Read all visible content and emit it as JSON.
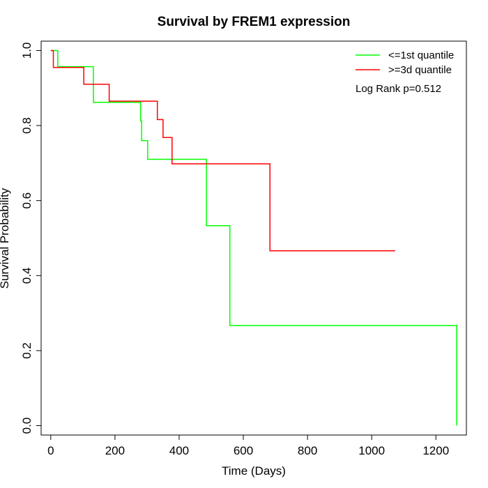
{
  "chart_data": {
    "type": "line",
    "step": true,
    "title": "Survival by FREM1 expression",
    "xlabel": "Time (Days)",
    "ylabel": "Survival Probability",
    "xlim": [
      -30,
      1295
    ],
    "ylim": [
      -0.025,
      1.025
    ],
    "xticks": [
      0,
      200,
      400,
      600,
      800,
      1000,
      1200
    ],
    "yticks": [
      0.0,
      0.2,
      0.4,
      0.6,
      0.8,
      1.0
    ],
    "xtick_labels": [
      "0",
      "200",
      "400",
      "600",
      "800",
      "1000",
      "1200"
    ],
    "ytick_labels": [
      "0.0",
      "0.2",
      "0.4",
      "0.6",
      "0.8",
      "1.0"
    ],
    "grid": false,
    "legend_position": "top-right",
    "annotation": "Log Rank p=0.512",
    "series": [
      {
        "name": "<=1st quantile",
        "color": "#00ff00",
        "points": [
          [
            0,
            1.0
          ],
          [
            22,
            1.0
          ],
          [
            22,
            0.957
          ],
          [
            133,
            0.957
          ],
          [
            133,
            0.862
          ],
          [
            280,
            0.862
          ],
          [
            280,
            0.812
          ],
          [
            283,
            0.812
          ],
          [
            283,
            0.76
          ],
          [
            302,
            0.76
          ],
          [
            302,
            0.71
          ],
          [
            485,
            0.71
          ],
          [
            485,
            0.533
          ],
          [
            558,
            0.533
          ],
          [
            558,
            0.267
          ],
          [
            1265,
            0.267
          ],
          [
            1265,
            0.0
          ]
        ]
      },
      {
        "name": ">=3d quantile",
        "color": "#ff0000",
        "points": [
          [
            0,
            1.0
          ],
          [
            8,
            1.0
          ],
          [
            8,
            0.955
          ],
          [
            103,
            0.955
          ],
          [
            103,
            0.91
          ],
          [
            182,
            0.91
          ],
          [
            182,
            0.865
          ],
          [
            332,
            0.865
          ],
          [
            332,
            0.816
          ],
          [
            350,
            0.816
          ],
          [
            350,
            0.768
          ],
          [
            378,
            0.768
          ],
          [
            378,
            0.698
          ],
          [
            683,
            0.698
          ],
          [
            683,
            0.466
          ],
          [
            1073,
            0.466
          ]
        ]
      }
    ]
  }
}
